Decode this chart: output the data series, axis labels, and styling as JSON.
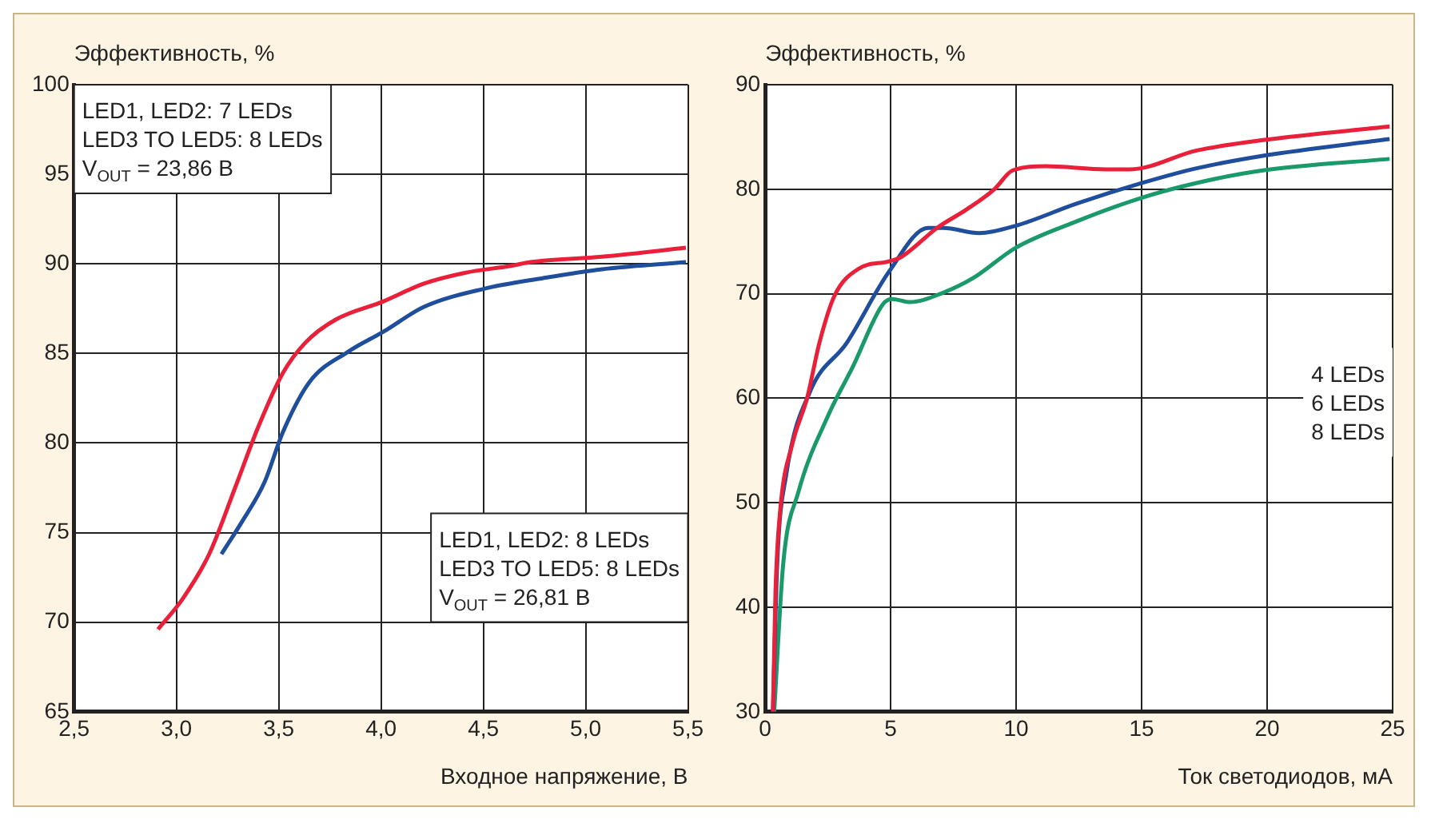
{
  "chart_data": [
    {
      "type": "line",
      "ylabel": "Эффективность, %",
      "xlabel": "Входное напряжение, В",
      "xlim": [
        2.5,
        5.5
      ],
      "ylim": [
        65,
        100
      ],
      "xticks": [
        {
          "value": 2.5,
          "label": "2,5"
        },
        {
          "value": 3.0,
          "label": "3,0"
        },
        {
          "value": 3.5,
          "label": "3,5"
        },
        {
          "value": 4.0,
          "label": "4,0"
        },
        {
          "value": 4.5,
          "label": "4,5"
        },
        {
          "value": 5.0,
          "label": "5,0"
        },
        {
          "value": 5.5,
          "label": "5,5"
        }
      ],
      "yticks": [
        65,
        70,
        75,
        80,
        85,
        90,
        95,
        100
      ],
      "grid": true,
      "annotations": [
        "LED1, LED2: 7 LEDs\nLED3 TO LED5: 8 LEDs\nV$_{OUT}$ = 23,86 В",
        "LED1, LED2: 8 LEDs\nLED3 TO LED5: 8 LEDs\nV$_{OUT}$ = 26,81 В"
      ],
      "series": [
        {
          "color": "#e8203a",
          "x": [
            2.91,
            3.03,
            3.16,
            3.29,
            3.4,
            3.52,
            3.63,
            3.78,
            4.01,
            4.21,
            4.41,
            4.64,
            4.73,
            5.08,
            5.49
          ],
          "values": [
            69.6,
            71.3,
            73.8,
            77.6,
            80.9,
            83.9,
            85.6,
            86.9,
            87.9,
            88.9,
            89.5,
            89.9,
            90.1,
            90.4,
            90.9
          ]
        },
        {
          "color": "#1f4e9c",
          "x": [
            3.22,
            3.32,
            3.43,
            3.52,
            3.65,
            3.84,
            4.01,
            4.21,
            4.5,
            4.79,
            5.08,
            5.49
          ],
          "values": [
            73.8,
            75.6,
            77.8,
            80.6,
            83.4,
            85.1,
            86.2,
            87.6,
            88.6,
            89.2,
            89.7,
            90.1
          ]
        }
      ]
    },
    {
      "type": "line",
      "ylabel": "Эффективность, %",
      "xlabel": "Ток светодиодов, мА",
      "xlim": [
        0,
        25
      ],
      "ylim": [
        30,
        90
      ],
      "xticks": [
        0,
        5,
        10,
        15,
        20,
        25
      ],
      "yticks": [
        30,
        40,
        50,
        60,
        70,
        80,
        90
      ],
      "grid": true,
      "annotations": [
        "4 LEDs\n6 LEDs\n8 LEDs"
      ],
      "series": [
        {
          "color": "#e8203a",
          "x": [
            0.31,
            0.41,
            0.6,
            1.08,
            1.68,
            2.16,
            2.76,
            3.73,
            4.93,
            5.41,
            6.85,
            8.05,
            9.13,
            9.86,
            11.18,
            13.58,
            14.54,
            17.19,
            19.83,
            24.88
          ],
          "values": [
            30,
            41.4,
            49.3,
            55.6,
            60.1,
            65.3,
            69.8,
            72.4,
            73.1,
            73.5,
            76.3,
            78.1,
            80,
            81.8,
            82.2,
            81.9,
            81.9,
            83.7,
            84.7,
            86.0
          ]
        },
        {
          "color": "#1f4e9c",
          "x": [
            0.31,
            0.48,
            0.84,
            1.8,
            3.25,
            4.93,
            6.49,
            7.09,
            8.53,
            9.98,
            12.38,
            15.02,
            17.19,
            19.83,
            24.88
          ],
          "values": [
            30,
            44.2,
            52.7,
            60.7,
            65.3,
            72.1,
            76.3,
            76.3,
            75.8,
            76.5,
            78.6,
            80.6,
            82.0,
            83.2,
            84.8
          ]
        },
        {
          "color": "#1a9a6a",
          "x": [
            0.36,
            0.72,
            1.32,
            2.52,
            3.49,
            4.69,
            5.05,
            5.77,
            7.09,
            8.29,
            9.98,
            12.38,
            15.02,
            17.19,
            19.83,
            24.88
          ],
          "values": [
            30,
            44.2,
            51,
            58.4,
            63,
            69,
            69.5,
            69.2,
            70.1,
            71.5,
            74.4,
            76.9,
            79.2,
            80.6,
            81.8,
            82.9
          ]
        }
      ]
    }
  ]
}
